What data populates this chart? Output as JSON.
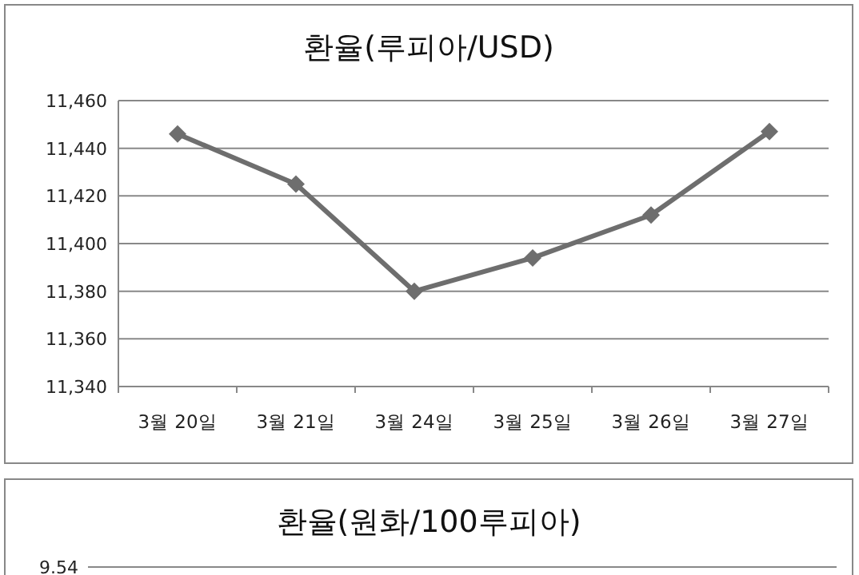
{
  "chart_data": [
    {
      "type": "line",
      "title": "환율(루피아/USD)",
      "categories": [
        "3월 20일",
        "3월 21일",
        "3월 24일",
        "3월 25일",
        "3월 26일",
        "3월 27일"
      ],
      "series": [
        {
          "color": "#6e6e6e",
          "values": [
            11446,
            11425,
            11380,
            11394,
            11412,
            11447
          ]
        }
      ],
      "ylim": [
        11340,
        11460
      ],
      "yticks": [
        {
          "value": 11340,
          "label": "11,340"
        },
        {
          "value": 11360,
          "label": "11,360"
        },
        {
          "value": 11380,
          "label": "11,380"
        },
        {
          "value": 11400,
          "label": "11,400"
        },
        {
          "value": 11420,
          "label": "11,420"
        },
        {
          "value": 11440,
          "label": "11,440"
        },
        {
          "value": 11460,
          "label": "11,460"
        }
      ],
      "grid": "y",
      "marker": "diamond"
    },
    {
      "type": "other",
      "title": "환율(원화/100루피아)",
      "annotations": [
        "9.54"
      ]
    }
  ]
}
